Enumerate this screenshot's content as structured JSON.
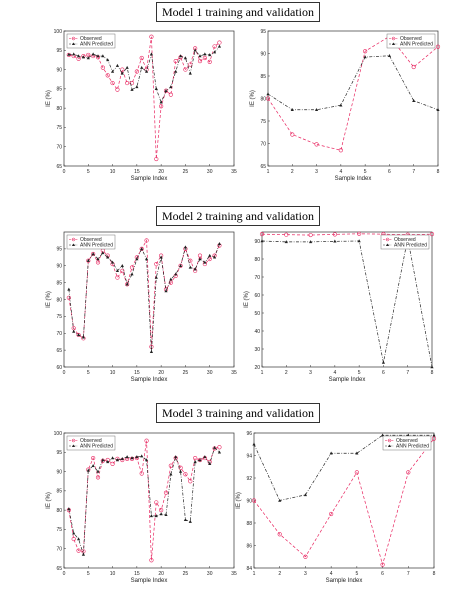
{
  "titles": [
    "Model 1 training and validation",
    "Model 2 training and validation",
    "Model 3 training and validation"
  ],
  "colors": {
    "observed": "#e8245f",
    "predicted": "#222222"
  },
  "chart_data": [
    {
      "type": "line",
      "xlabel": "Sample Index",
      "ylabel": "IE (%)",
      "xlim": [
        0,
        35
      ],
      "ylim": [
        65,
        100
      ],
      "xticks": [
        0,
        5,
        10,
        15,
        20,
        25,
        30,
        35
      ],
      "yticks": [
        65,
        70,
        75,
        80,
        85,
        90,
        95,
        100
      ],
      "legend": "top-left",
      "x": [
        1,
        2,
        3,
        4,
        5,
        6,
        7,
        8,
        9,
        10,
        11,
        12,
        13,
        14,
        15,
        16,
        17,
        18,
        19,
        20,
        21,
        22,
        23,
        24,
        25,
        26,
        27,
        28,
        29,
        30,
        31,
        32
      ],
      "series": [
        {
          "name": "Observed",
          "values": [
            93.8,
            93.5,
            92.8,
            93.5,
            93.8,
            93.5,
            93.2,
            90.5,
            88.5,
            86.5,
            84.8,
            90,
            86.5,
            86.5,
            89.5,
            93,
            90,
            98.5,
            66.8,
            80.5,
            84.5,
            83.5,
            92.2,
            93.2,
            90,
            91.3,
            95.5,
            92.2,
            93,
            92,
            96,
            97
          ]
        },
        {
          "name": "ANN Predicted",
          "values": [
            93.9,
            94,
            93.5,
            93.2,
            93,
            94,
            93.5,
            93.5,
            92.5,
            89.5,
            91,
            89,
            90.5,
            84.8,
            85.5,
            90.5,
            89.5,
            94,
            85,
            81.5,
            84.5,
            85.5,
            89.5,
            93.5,
            93,
            89,
            95,
            93.5,
            94,
            93.8,
            94.5,
            96
          ]
        }
      ]
    },
    {
      "type": "line",
      "xlabel": "Sample Index",
      "ylabel": "IE (%)",
      "xlim": [
        1,
        8
      ],
      "ylim": [
        65,
        95
      ],
      "xticks": [
        1,
        2,
        3,
        4,
        5,
        6,
        7,
        8
      ],
      "yticks": [
        65,
        70,
        75,
        80,
        85,
        90,
        95
      ],
      "legend": "top-right",
      "x": [
        1,
        2,
        3,
        4,
        5,
        6,
        7,
        8
      ],
      "series": [
        {
          "name": "Observed",
          "values": [
            80,
            72,
            69.8,
            68.5,
            90.5,
            93.8,
            87,
            91.5
          ]
        },
        {
          "name": "ANN Predicted",
          "values": [
            81,
            77.5,
            77.5,
            78.5,
            89.2,
            89.5,
            79.5,
            77.5
          ]
        }
      ]
    },
    {
      "type": "line",
      "xlabel": "Sample Index",
      "ylabel": "IE (%)",
      "xlim": [
        0,
        35
      ],
      "ylim": [
        60,
        100
      ],
      "xticks": [
        0,
        5,
        10,
        15,
        20,
        25,
        30,
        35
      ],
      "yticks": [
        60,
        65,
        70,
        75,
        80,
        85,
        90,
        95
      ],
      "legend": "top-left",
      "x": [
        1,
        2,
        3,
        4,
        5,
        6,
        7,
        8,
        9,
        10,
        11,
        12,
        13,
        14,
        15,
        16,
        17,
        18,
        19,
        20,
        21,
        22,
        23,
        24,
        25,
        26,
        27,
        28,
        29,
        30,
        31,
        32
      ],
      "series": [
        {
          "name": "Observed",
          "values": [
            80.5,
            71.5,
            69.5,
            68.5,
            91.5,
            93.5,
            91,
            94.5,
            93,
            90.5,
            86.5,
            88.5,
            84.5,
            89.5,
            92.5,
            95,
            97.5,
            66,
            90.5,
            93,
            83,
            85,
            87,
            90,
            95,
            91.5,
            88.5,
            93,
            90.5,
            92,
            93,
            96
          ]
        },
        {
          "name": "ANN Predicted",
          "values": [
            83,
            70.5,
            69.5,
            68.8,
            91.5,
            93.5,
            92,
            93.8,
            92.5,
            91,
            88.5,
            90,
            84.5,
            87.5,
            92,
            95,
            92,
            64.5,
            86.5,
            92.5,
            82.5,
            86,
            87.5,
            90,
            95.5,
            89.5,
            89,
            92,
            91,
            93,
            92.5,
            96.5
          ]
        }
      ]
    },
    {
      "type": "line",
      "xlabel": "Sample Index",
      "ylabel": "IE (%)",
      "xlim": [
        1,
        8
      ],
      "ylim": [
        20,
        95
      ],
      "xticks": [
        1,
        2,
        3,
        4,
        5,
        6,
        7,
        8
      ],
      "yticks": [
        20,
        30,
        40,
        50,
        60,
        70,
        80,
        90
      ],
      "legend": "top-right",
      "x": [
        1,
        2,
        3,
        4,
        5,
        6,
        7,
        8
      ],
      "series": [
        {
          "name": "Observed",
          "values": [
            93.8,
            93.5,
            93.3,
            93.7,
            94,
            93.8,
            93.5,
            93.8
          ]
        },
        {
          "name": "ANN Predicted",
          "values": [
            90,
            89.5,
            89.5,
            89.8,
            90,
            22.5,
            91.5,
            20
          ]
        }
      ]
    },
    {
      "type": "line",
      "xlabel": "Sample Index",
      "ylabel": "IE (%)",
      "xlim": [
        0,
        35
      ],
      "ylim": [
        65,
        100
      ],
      "xticks": [
        0,
        5,
        10,
        15,
        20,
        25,
        30,
        35
      ],
      "yticks": [
        65,
        70,
        75,
        80,
        85,
        90,
        95,
        100
      ],
      "legend": "top-left",
      "x": [
        1,
        2,
        3,
        4,
        5,
        6,
        7,
        8,
        9,
        10,
        11,
        12,
        13,
        14,
        15,
        16,
        17,
        18,
        19,
        20,
        21,
        22,
        23,
        24,
        25,
        26,
        27,
        28,
        29,
        30,
        31,
        32
      ],
      "series": [
        {
          "name": "Observed",
          "values": [
            80,
            72.5,
            69.5,
            69.3,
            90.5,
            93.5,
            88.5,
            92.8,
            93,
            92,
            93.3,
            93,
            93.3,
            93.3,
            93.5,
            89.5,
            98,
            67,
            82,
            80,
            84.5,
            91.5,
            93.5,
            91,
            89.3,
            87.5,
            93.5,
            93,
            93.5,
            92.5,
            96,
            96.3
          ]
        },
        {
          "name": "ANN Predicted",
          "values": [
            80.3,
            74,
            72.5,
            68.5,
            90.3,
            91.5,
            90,
            93,
            92.5,
            93.5,
            93,
            93.3,
            93.8,
            93.5,
            93.8,
            94,
            93,
            78.5,
            78.5,
            79,
            78.8,
            89.3,
            93.8,
            90,
            77.5,
            77,
            92.5,
            93,
            93.8,
            92,
            96.2,
            95
          ]
        }
      ]
    },
    {
      "type": "line",
      "xlabel": "Sample Index",
      "ylabel": "IE (%)",
      "xlim": [
        1,
        8
      ],
      "ylim": [
        84,
        96
      ],
      "xticks": [
        1,
        2,
        3,
        4,
        5,
        6,
        7,
        8
      ],
      "yticks": [
        84,
        86,
        88,
        90,
        92,
        94,
        96
      ],
      "legend": "top-right",
      "x": [
        1,
        2,
        3,
        4,
        5,
        6,
        7,
        8
      ],
      "series": [
        {
          "name": "Observed",
          "values": [
            90,
            87,
            85,
            88.8,
            92.5,
            84.3,
            92.5,
            95.5
          ]
        },
        {
          "name": "ANN Predicted",
          "values": [
            95,
            90,
            90.5,
            94.2,
            94.2,
            95.8,
            95.8,
            95.8
          ]
        }
      ]
    }
  ]
}
